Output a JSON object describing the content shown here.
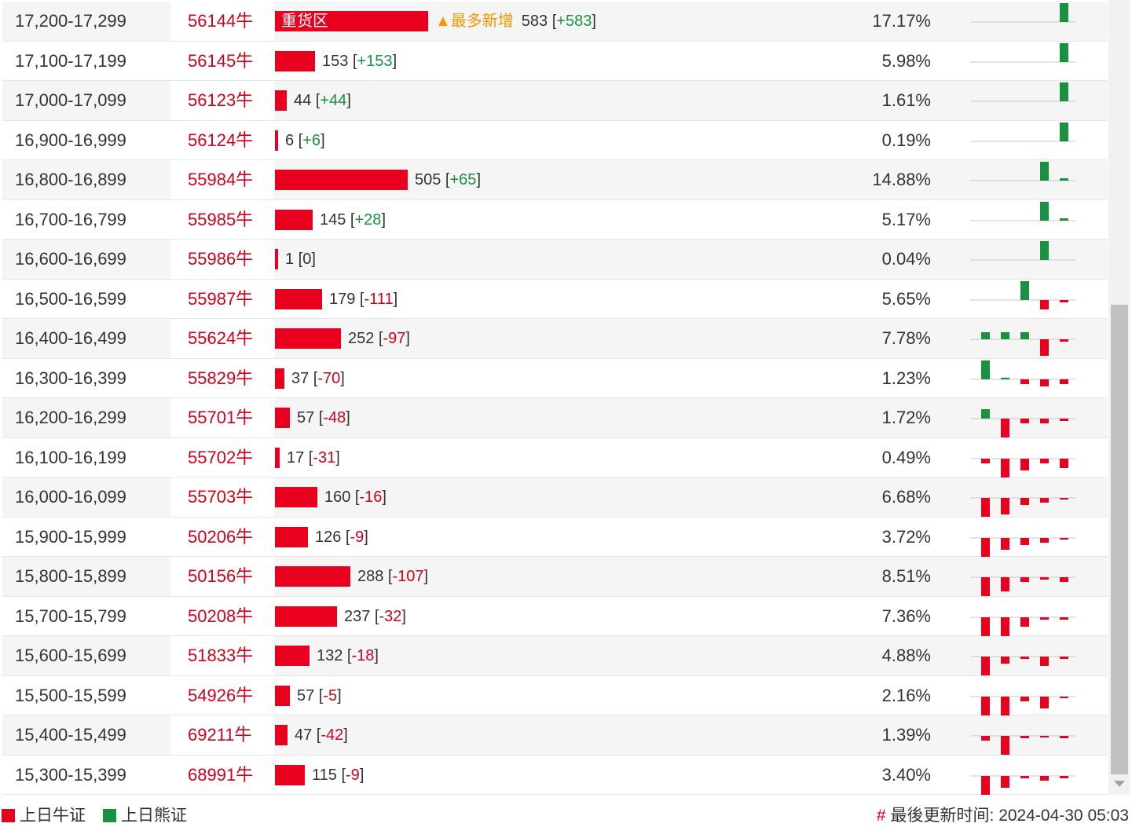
{
  "colors": {
    "bull": "#e8001e",
    "bear": "#1a9140",
    "hot": "#f39800"
  },
  "hot_label": "▲最多新增",
  "rows": [
    {
      "range": "17,200-17,299",
      "code": "56144牛",
      "count": "583",
      "change": "+583",
      "pct": "17.17%",
      "bar_label": "重货区",
      "hot": true,
      "bar_value": 583,
      "spark": [
        0,
        0,
        0,
        0,
        8
      ]
    },
    {
      "range": "17,100-17,199",
      "code": "56145牛",
      "count": "153",
      "change": "+153",
      "pct": "5.98%",
      "bar_label": "",
      "hot": false,
      "bar_value": 153,
      "spark": [
        0,
        0,
        0,
        0,
        8
      ]
    },
    {
      "range": "17,000-17,099",
      "code": "56123牛",
      "count": "44",
      "change": "+44",
      "pct": "1.61%",
      "bar_label": "",
      "hot": false,
      "bar_value": 44,
      "spark": [
        0,
        0,
        0,
        0,
        8
      ]
    },
    {
      "range": "16,900-16,999",
      "code": "56124牛",
      "count": "6",
      "change": "+6",
      "pct": "0.19%",
      "bar_label": "",
      "hot": false,
      "bar_value": 6,
      "spark": [
        0,
        0,
        0,
        0,
        8
      ]
    },
    {
      "range": "16,800-16,899",
      "code": "55984牛",
      "count": "505",
      "change": "+65",
      "pct": "14.88%",
      "bar_label": "",
      "hot": false,
      "bar_value": 505,
      "spark": [
        0,
        0,
        0,
        8,
        1
      ]
    },
    {
      "range": "16,700-16,799",
      "code": "55985牛",
      "count": "145",
      "change": "+28",
      "pct": "5.17%",
      "bar_label": "",
      "hot": false,
      "bar_value": 145,
      "spark": [
        0,
        0,
        0,
        8,
        1
      ]
    },
    {
      "range": "16,600-16,699",
      "code": "55986牛",
      "count": "1",
      "change": "0",
      "pct": "0.04%",
      "bar_label": "",
      "hot": false,
      "bar_value": 1,
      "spark": [
        0,
        0,
        0,
        8,
        0
      ]
    },
    {
      "range": "16,500-16,599",
      "code": "55987牛",
      "count": "179",
      "change": "-111",
      "pct": "5.65%",
      "bar_label": "",
      "hot": false,
      "bar_value": 179,
      "spark": [
        0,
        0,
        8,
        -4,
        -1
      ]
    },
    {
      "range": "16,400-16,499",
      "code": "55624牛",
      "count": "252",
      "change": "-97",
      "pct": "7.78%",
      "bar_label": "",
      "hot": false,
      "bar_value": 252,
      "spark": [
        3,
        3,
        3,
        -7,
        -1
      ]
    },
    {
      "range": "16,300-16,399",
      "code": "55829牛",
      "count": "37",
      "change": "-70",
      "pct": "1.23%",
      "bar_label": "",
      "hot": false,
      "bar_value": 37,
      "spark": [
        8,
        0.5,
        -2,
        -3,
        -2
      ]
    },
    {
      "range": "16,200-16,299",
      "code": "55701牛",
      "count": "57",
      "change": "-48",
      "pct": "1.72%",
      "bar_label": "",
      "hot": false,
      "bar_value": 57,
      "spark": [
        4,
        -8,
        -2,
        -2,
        -1
      ]
    },
    {
      "range": "16,100-16,199",
      "code": "55702牛",
      "count": "17",
      "change": "-31",
      "pct": "0.49%",
      "bar_label": "",
      "hot": false,
      "bar_value": 17,
      "spark": [
        -2,
        -8,
        -5,
        -2,
        -4
      ]
    },
    {
      "range": "16,000-16,099",
      "code": "55703牛",
      "count": "160",
      "change": "-16",
      "pct": "6.68%",
      "bar_label": "",
      "hot": false,
      "bar_value": 160,
      "spark": [
        -8,
        -7,
        -3,
        -2,
        -0.5
      ]
    },
    {
      "range": "15,900-15,999",
      "code": "50206牛",
      "count": "126",
      "change": "-9",
      "pct": "3.72%",
      "bar_label": "",
      "hot": false,
      "bar_value": 126,
      "spark": [
        -8,
        -5,
        -3,
        -2,
        -0.5
      ]
    },
    {
      "range": "15,800-15,899",
      "code": "50156牛",
      "count": "288",
      "change": "-107",
      "pct": "8.51%",
      "bar_label": "",
      "hot": false,
      "bar_value": 288,
      "spark": [
        -8,
        -6,
        -2,
        -1,
        -2
      ]
    },
    {
      "range": "15,700-15,799",
      "code": "50208牛",
      "count": "237",
      "change": "-32",
      "pct": "7.36%",
      "bar_label": "",
      "hot": false,
      "bar_value": 237,
      "spark": [
        -8,
        -8,
        -4,
        -1,
        -1
      ]
    },
    {
      "range": "15,600-15,699",
      "code": "51833牛",
      "count": "132",
      "change": "-18",
      "pct": "4.88%",
      "bar_label": "",
      "hot": false,
      "bar_value": 132,
      "spark": [
        -8,
        -3,
        -1,
        -4,
        -1
      ]
    },
    {
      "range": "15,500-15,599",
      "code": "54926牛",
      "count": "57",
      "change": "-5",
      "pct": "2.16%",
      "bar_label": "",
      "hot": false,
      "bar_value": 57,
      "spark": [
        -8,
        -8,
        -2,
        -5,
        -0.5
      ]
    },
    {
      "range": "15,400-15,499",
      "code": "69211牛",
      "count": "47",
      "change": "-42",
      "pct": "1.39%",
      "bar_label": "",
      "hot": false,
      "bar_value": 47,
      "spark": [
        -2,
        -8,
        -1,
        -0.5,
        -1
      ]
    },
    {
      "range": "15,300-15,399",
      "code": "68991牛",
      "count": "115",
      "change": "-9",
      "pct": "3.40%",
      "bar_label": "",
      "hot": false,
      "bar_value": 115,
      "spark": [
        -8,
        -5,
        -1,
        -2,
        -1
      ]
    }
  ],
  "legend": {
    "bull_label": "上日牛证",
    "bear_label": "上日熊证"
  },
  "footer": {
    "hash": "#",
    "updated_label": "最後更新时间:",
    "updated_time": "2024-04-30 05:03"
  }
}
